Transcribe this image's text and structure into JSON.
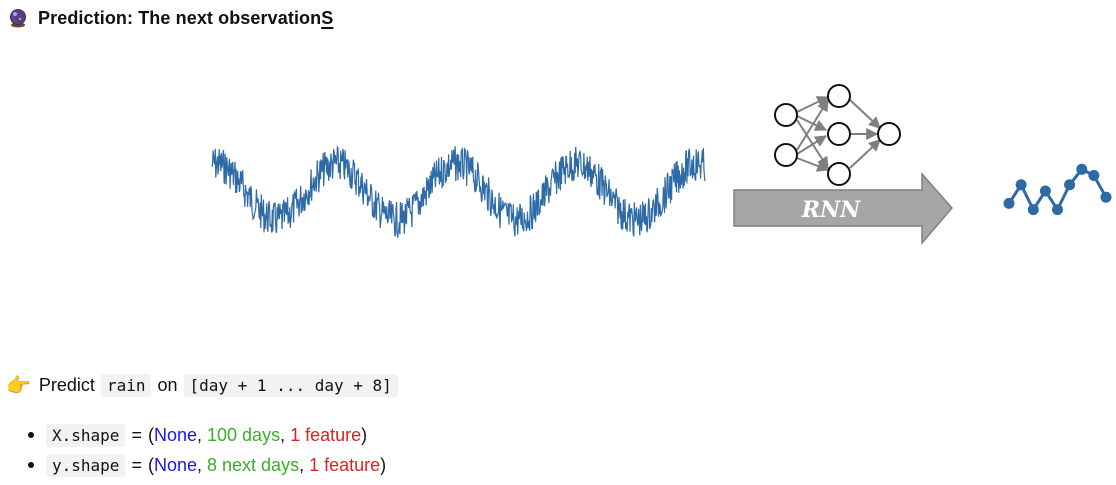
{
  "header": {
    "icon": "crystal-ball-icon",
    "title_main": "Prediction: The next observation",
    "title_accent": "S"
  },
  "diagram": {
    "model_label": "RNN",
    "colors": {
      "series": "#2e6aa6",
      "arrow_fill": "#a6a6a6",
      "arrow_stroke": "#7f7f7f",
      "network_edges": "#7f7f7f",
      "nodes_stroke": "#111111"
    },
    "output_points": [
      0.3,
      0.6,
      0.2,
      0.5,
      0.2,
      0.6,
      0.85,
      0.75,
      0.4
    ]
  },
  "predict_line": {
    "icon": "pointing-hand-icon",
    "prefix": "Predict",
    "target_code": "rain",
    "middle": "on",
    "range_code": "[day + 1 ... day + 8]"
  },
  "shapes": [
    {
      "code": "X.shape",
      "eq": "=",
      "open": "(",
      "none": "None",
      "sep1": ",",
      "length": "100 days",
      "sep2": ",",
      "features": "1 feature",
      "close": ")"
    },
    {
      "code": "y.shape",
      "eq": "=",
      "open": "(",
      "none": "None",
      "sep1": ",",
      "length": "8 next days",
      "sep2": ",",
      "features": "1 feature",
      "close": ")"
    }
  ]
}
